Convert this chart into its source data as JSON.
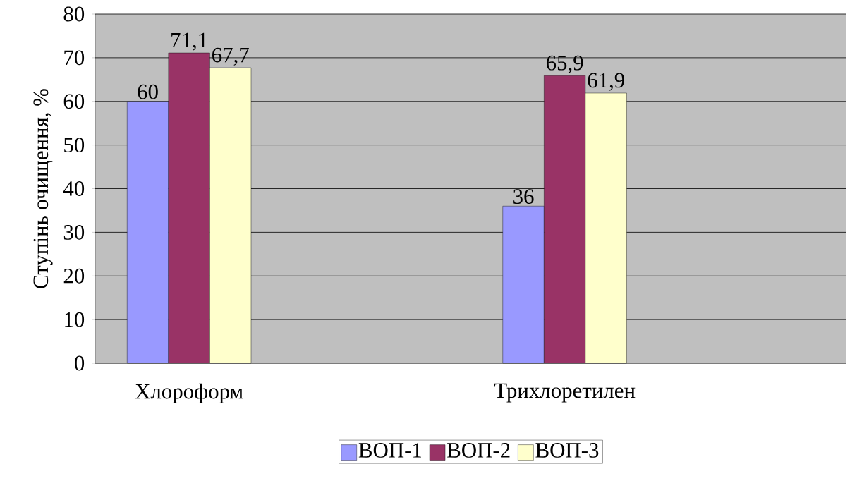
{
  "chart_data": {
    "type": "bar",
    "ylabel": "Ступінь очищення, %",
    "categories": [
      "Хлороформ",
      null,
      "Трихлоретилен",
      null
    ],
    "series": [
      {
        "name": "ВОП-1",
        "color": "#9999ff",
        "values": [
          60,
          null,
          36,
          null
        ],
        "value_labels": [
          "60",
          null,
          "36",
          null
        ]
      },
      {
        "name": "ВОП-2",
        "color": "#993366",
        "values": [
          71.1,
          null,
          65.9,
          null
        ],
        "value_labels": [
          "71,1",
          null,
          "65,9",
          null
        ]
      },
      {
        "name": "ВОП-3",
        "color": "#ffffcc",
        "values": [
          67.7,
          null,
          61.9,
          null
        ],
        "value_labels": [
          "67,7",
          null,
          "61,9",
          null
        ]
      }
    ],
    "ylim": [
      0,
      80
    ],
    "yticks": [
      0,
      10,
      20,
      30,
      40,
      50,
      60,
      70,
      80
    ],
    "grid": "y",
    "legend": "bottom"
  }
}
